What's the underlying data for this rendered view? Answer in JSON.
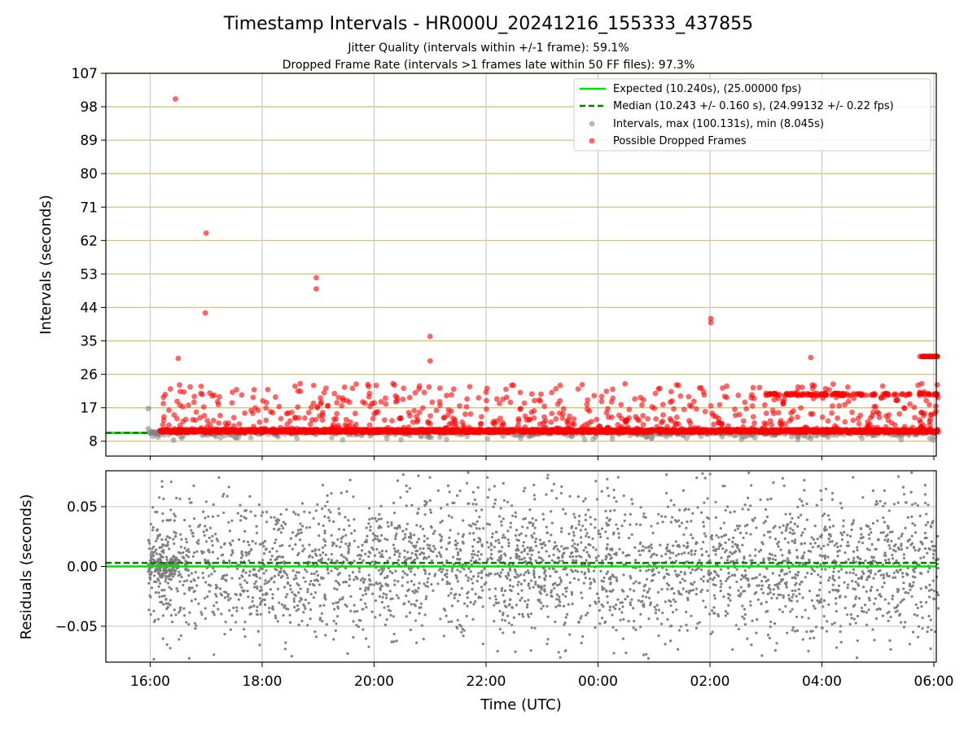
{
  "title": "Timestamp Intervals - HR000U_20241216_155333_437855",
  "subtitle_line1": "Jitter Quality (intervals within +/-1 frame): 59.1%",
  "subtitle_line2": "Dropped Frame Rate (intervals >1 frames late within 50 FF files): 97.3%",
  "colors": {
    "expected": "#00e000",
    "median": "#007a00",
    "intervals": "#808080",
    "dropped": "#ff0000",
    "hgrid_top": "#d4c27a",
    "vgrid": "#c8c8c8"
  },
  "chart_data": [
    {
      "type": "scatter",
      "panel": "intervals",
      "ylabel": "Intervals (seconds)",
      "ylim": [
        4,
        107
      ],
      "yticks": [
        8,
        17,
        26,
        35,
        44,
        53,
        62,
        71,
        80,
        89,
        98,
        107
      ],
      "xlim_hours_note": "15:10 to 06:05 UTC",
      "xtick_labels": [
        "16:00",
        "18:00",
        "20:00",
        "22:00",
        "00:00",
        "02:00",
        "04:00",
        "06:00"
      ],
      "grid": true,
      "legend_position": "top-right",
      "legend": [
        {
          "kind": "line",
          "label": "Expected (10.240s), (25.00000 fps)"
        },
        {
          "kind": "dashed",
          "label": "Median (10.243 +/- 0.160 s), (24.99132 +/- 0.22 fps)"
        },
        {
          "kind": "gray-dot",
          "label": "Intervals, max (100.131s), min (8.045s)"
        },
        {
          "kind": "red-dot",
          "label": "Possible Dropped Frames"
        }
      ],
      "expected_interval": 10.24,
      "median_interval": 10.243,
      "intervals_max": 100.131,
      "intervals_min": 8.045,
      "notable_dropped_points": [
        {
          "time": "16:27",
          "y": 100.1
        },
        {
          "time": "16:30",
          "y": 30.3
        },
        {
          "time": "17:00",
          "y": 64.0
        },
        {
          "time": "16:59",
          "y": 42.5
        },
        {
          "time": "18:58",
          "y": 52.0
        },
        {
          "time": "18:58",
          "y": 49.0
        },
        {
          "time": "21:00",
          "y": 36.2
        },
        {
          "time": "21:00",
          "y": 29.6
        },
        {
          "time": "02:01",
          "y": 41.0
        },
        {
          "time": "02:01",
          "y": 39.9
        },
        {
          "time": "03:48",
          "y": 30.5
        },
        {
          "time": "05:45",
          "y": 30.8
        }
      ]
    },
    {
      "type": "scatter",
      "panel": "residuals",
      "xlabel": "Time (UTC)",
      "ylabel": "Residuals (seconds)",
      "ylim": [
        -0.08,
        0.08
      ],
      "ytick_labels": [
        "0.05",
        "0.00",
        "−0.05"
      ],
      "yticks": [
        0.05,
        0.0,
        -0.05
      ],
      "xtick_labels": [
        "16:00",
        "18:00",
        "20:00",
        "22:00",
        "00:00",
        "02:00",
        "04:00",
        "06:00"
      ],
      "expected_residual": 0.0,
      "median_residual": 0.003,
      "grid": true
    }
  ]
}
